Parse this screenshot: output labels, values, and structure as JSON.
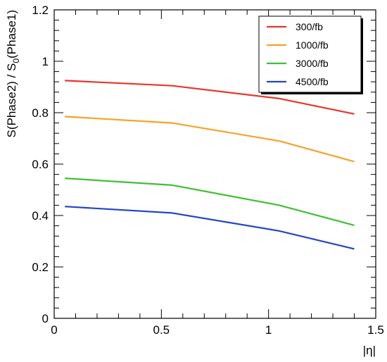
{
  "chart_data": {
    "type": "line",
    "title": "",
    "xlabel": "|η|",
    "ylabel": "S(Phase2) / S",
    "ylabel_subscript": "0",
    "ylabel_suffix": "(Phase1)",
    "xlim": [
      0,
      1.5
    ],
    "ylim": [
      0,
      1.2
    ],
    "x_ticks": [
      0,
      0.5,
      1,
      1.5
    ],
    "x_tick_labels": [
      "0",
      "0.5",
      "1",
      "1.5"
    ],
    "y_ticks": [
      0,
      0.2,
      0.4,
      0.6,
      0.8,
      1.0,
      1.2
    ],
    "y_tick_labels": [
      "0",
      "0.2",
      "0.4",
      "0.6",
      "0.8",
      "1",
      "1.2"
    ],
    "grid": false,
    "legend_position": "top-right",
    "series": [
      {
        "name": "300/fb",
        "color": "#e8362a",
        "x": [
          0.05,
          0.55,
          1.05,
          1.4
        ],
        "y": [
          0.925,
          0.905,
          0.855,
          0.795
        ]
      },
      {
        "name": "1000/fb",
        "color": "#f7a128",
        "x": [
          0.05,
          0.55,
          1.05,
          1.4
        ],
        "y": [
          0.785,
          0.76,
          0.69,
          0.61
        ]
      },
      {
        "name": "3000/fb",
        "color": "#3fc130",
        "x": [
          0.05,
          0.55,
          1.05,
          1.4
        ],
        "y": [
          0.545,
          0.518,
          0.44,
          0.362
        ]
      },
      {
        "name": "4500/fb",
        "color": "#2446c4",
        "x": [
          0.05,
          0.55,
          1.05,
          1.4
        ],
        "y": [
          0.435,
          0.41,
          0.34,
          0.27
        ]
      }
    ]
  }
}
